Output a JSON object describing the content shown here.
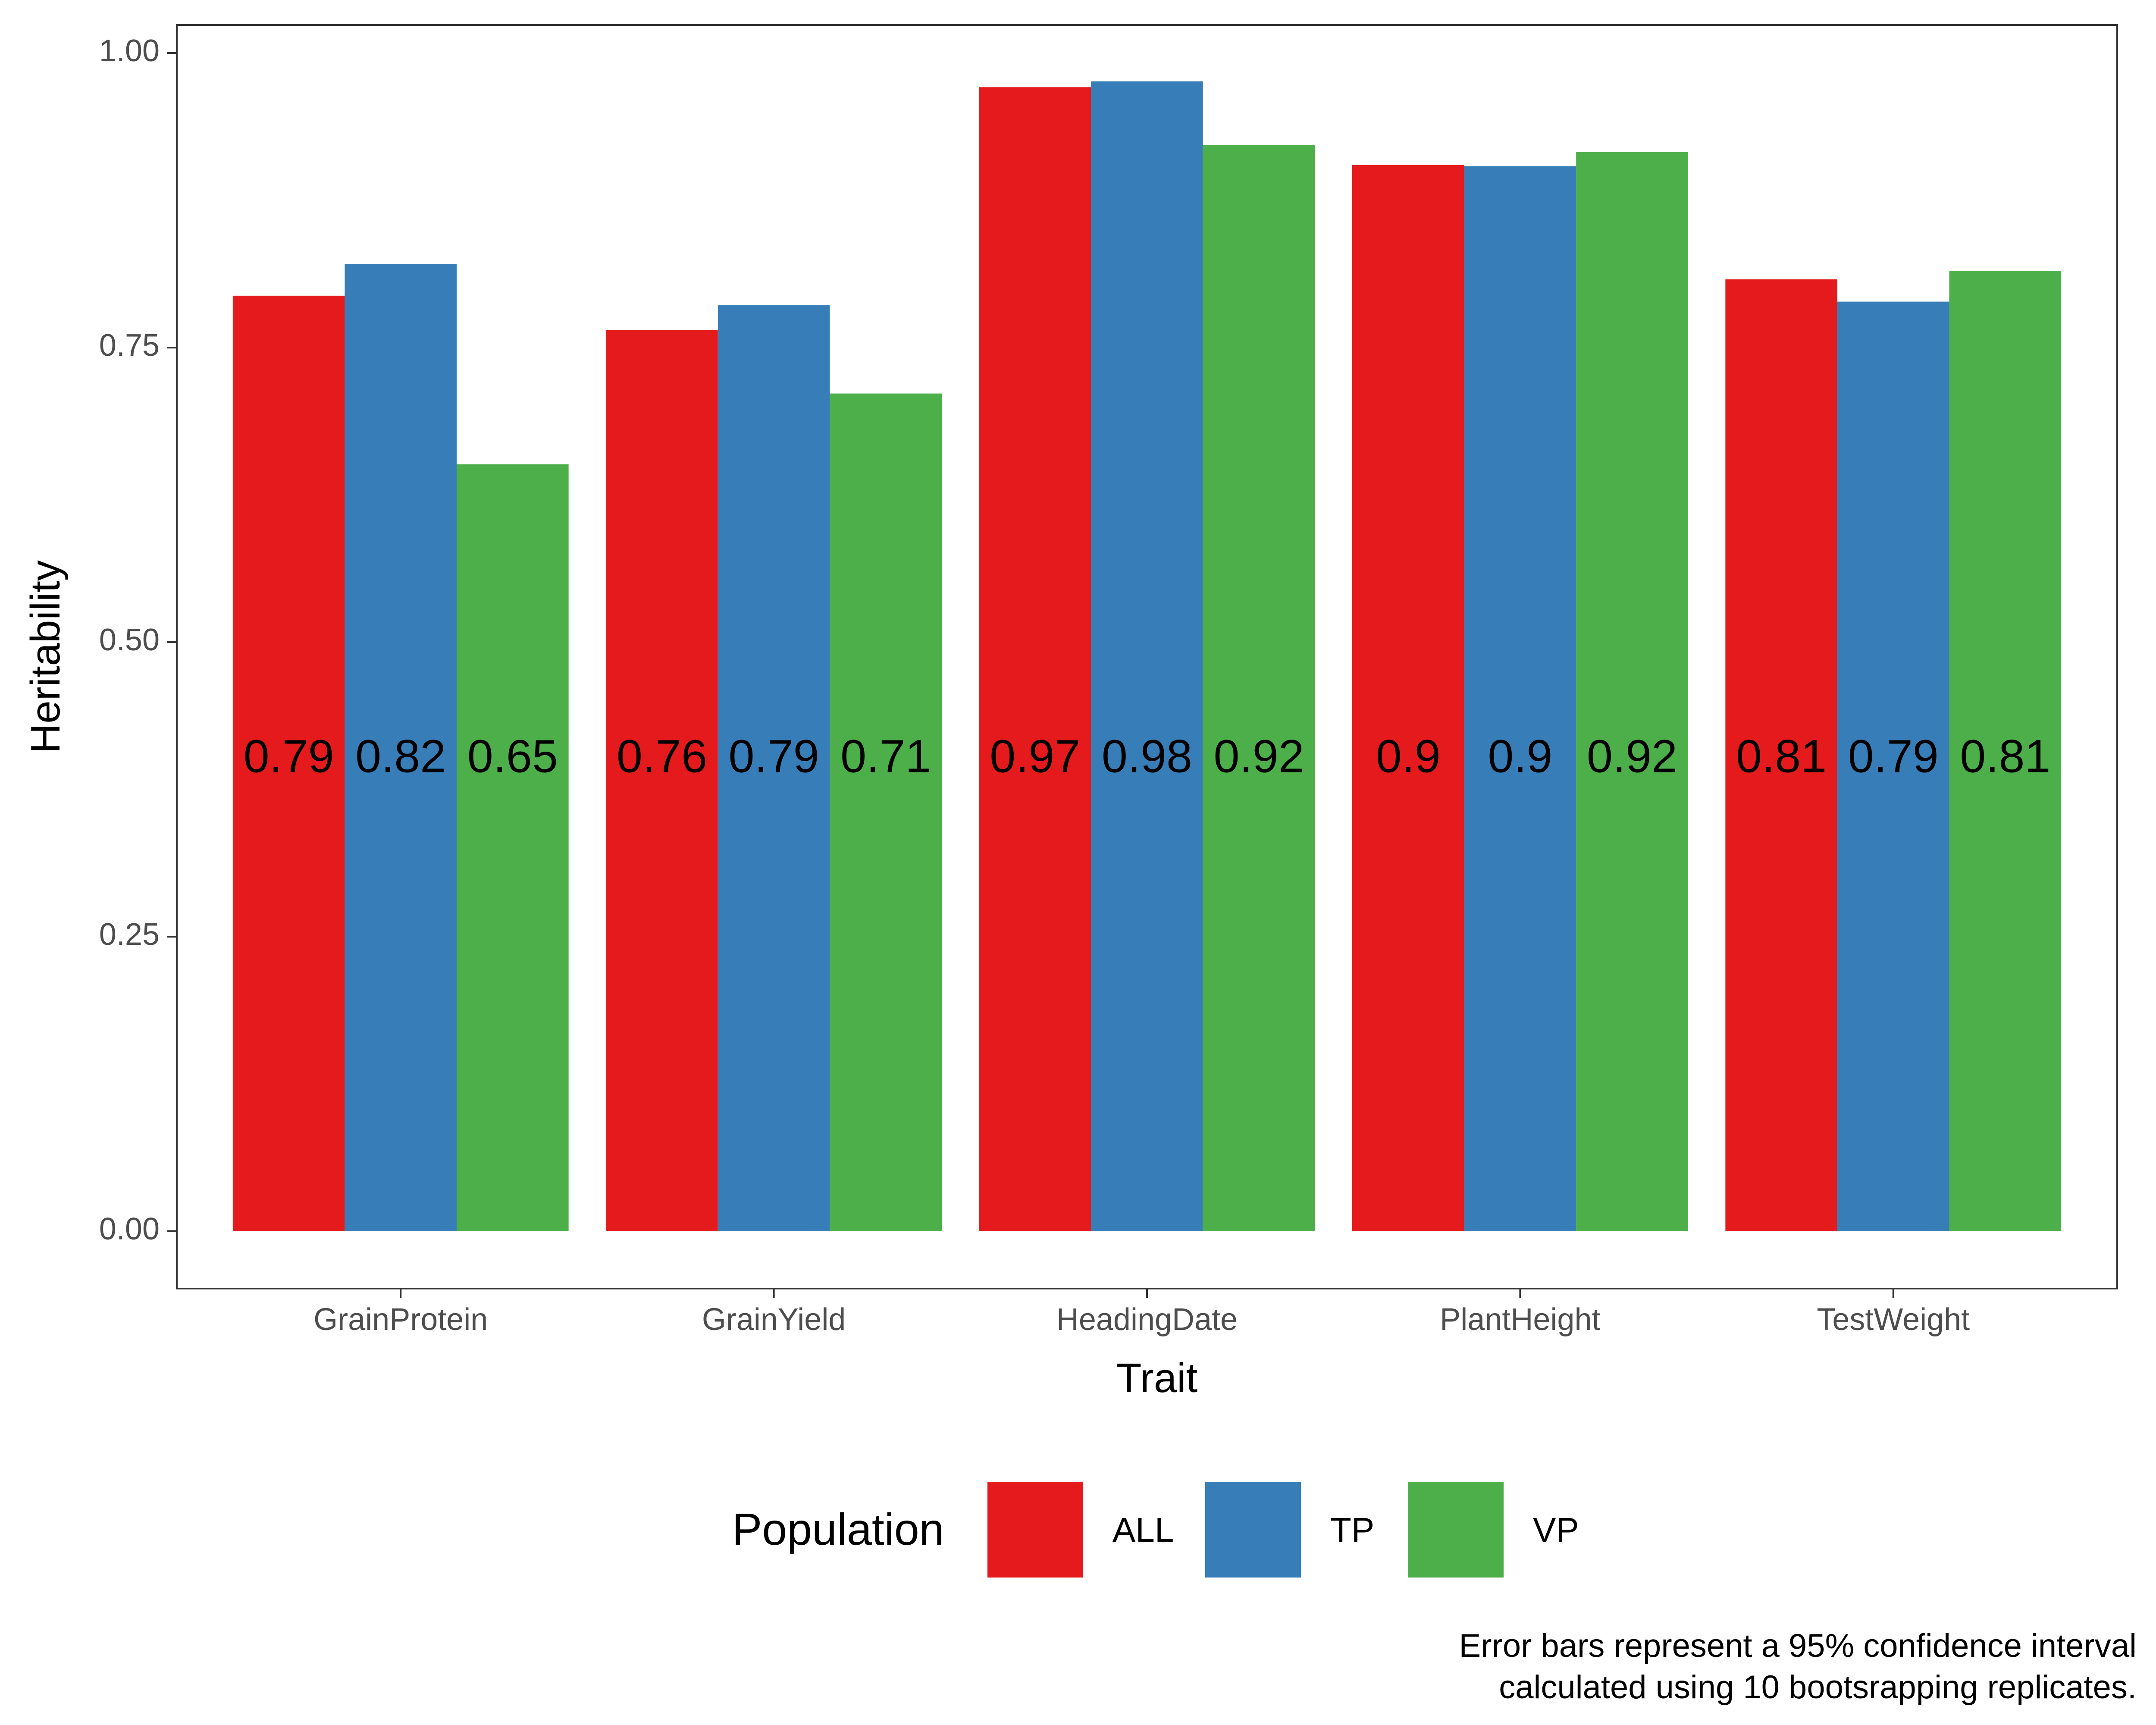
{
  "chart_data": {
    "type": "bar",
    "title": "",
    "xlabel": "Trait",
    "ylabel": "Heritability",
    "ylim": [
      0,
      1
    ],
    "yticks": [
      "0.00",
      "0.25",
      "0.50",
      "0.75",
      "1.00"
    ],
    "grid": false,
    "legend_title": "Population",
    "legend_position": "bottom",
    "categories": [
      "GrainProtein",
      "GrainYield",
      "HeadingDate",
      "PlantHeight",
      "TestWeight"
    ],
    "series": [
      {
        "name": "ALL",
        "color": "#e41a1c",
        "values": [
          0.794,
          0.765,
          0.971,
          0.905,
          0.808
        ],
        "labels": [
          "0.79",
          "0.76",
          "0.97",
          "0.9",
          "0.81"
        ]
      },
      {
        "name": "TP",
        "color": "#377eb8",
        "values": [
          0.821,
          0.786,
          0.976,
          0.904,
          0.789
        ],
        "labels": [
          "0.82",
          "0.79",
          "0.98",
          "0.9",
          "0.79"
        ]
      },
      {
        "name": "VP",
        "color": "#4daf4a",
        "values": [
          0.651,
          0.711,
          0.922,
          0.916,
          0.815
        ],
        "labels": [
          "0.65",
          "0.71",
          "0.92",
          "0.92",
          "0.81"
        ]
      }
    ],
    "caption": [
      "Error bars represent a 95% confidence interval",
      "calculated using 10 bootsrapping replicates."
    ]
  }
}
